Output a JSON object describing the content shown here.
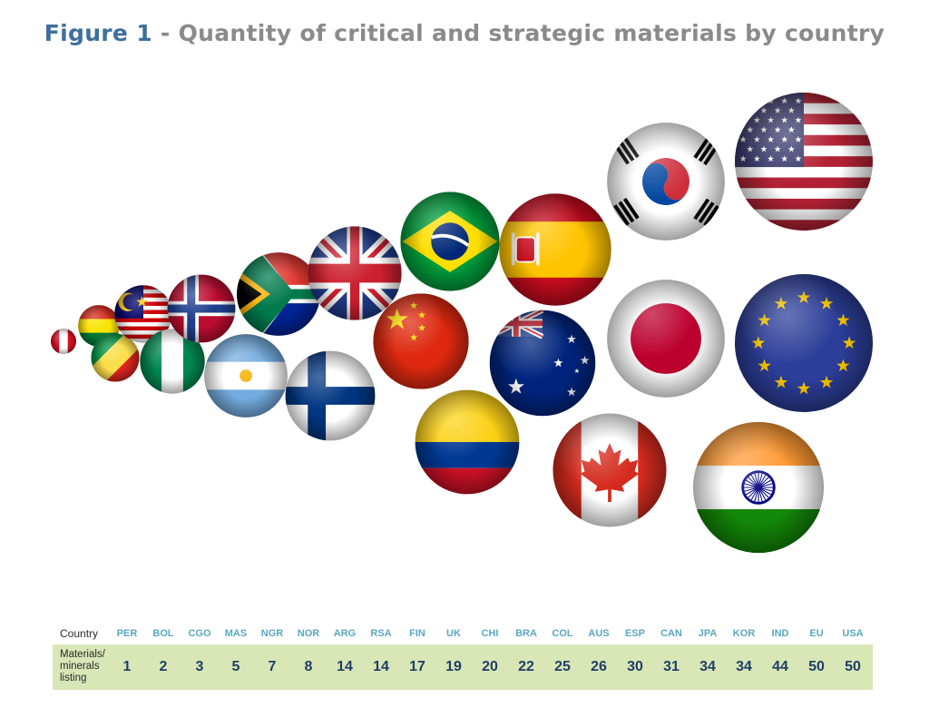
{
  "title": {
    "prefix": "Figure 1",
    "text": " - Quantity of critical and strategic materials by country"
  },
  "table": {
    "country_header": "Country",
    "values_header": "Materials/ minerals listing"
  },
  "chart_data": {
    "type": "bubble",
    "categories": [
      "PER",
      "BOL",
      "CGO",
      "MAS",
      "NGR",
      "NOR",
      "ARG",
      "RSA",
      "FIN",
      "UK",
      "CHI",
      "BRA",
      "COL",
      "AUS",
      "ESP",
      "CAN",
      "JPA",
      "KOR",
      "IND",
      "EU",
      "USA"
    ],
    "values": [
      1,
      2,
      3,
      5,
      7,
      8,
      14,
      14,
      17,
      19,
      20,
      22,
      25,
      26,
      30,
      31,
      34,
      34,
      44,
      50,
      50
    ],
    "flags": [
      "peru",
      "bolivia",
      "congo",
      "malaysia",
      "nigeria",
      "norway",
      "argentina",
      "south-africa",
      "finland",
      "united-kingdom",
      "china",
      "brazil",
      "colombia",
      "australia",
      "spain",
      "canada",
      "japan",
      "south-korea",
      "india",
      "european-union",
      "united-states"
    ],
    "value_label": "Materials/ minerals listing"
  }
}
